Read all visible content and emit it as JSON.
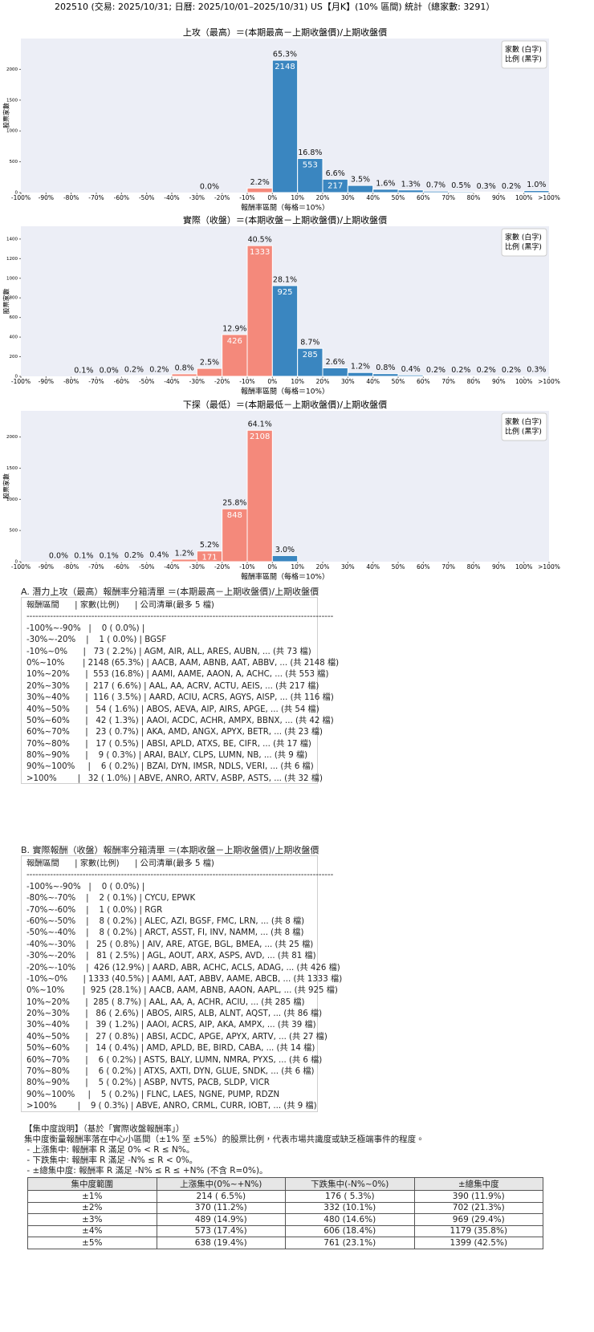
{
  "title": "202510 (交易: 2025/10/31; 日曆: 2025/10/01–2025/10/31) US【月K】(10% 區間) 統計（總家數: 3291）",
  "chart_data": [
    {
      "type": "histogram",
      "title": "上攻（最高）＝(本期最高－上期收盤價)/上期收盤價",
      "xlabel": "報酬率區間（每格＝10%）",
      "ylabel": "股票家數",
      "bins": [
        -100,
        -90,
        -80,
        -70,
        -60,
        -50,
        -40,
        -30,
        -20,
        -10,
        0,
        10,
        20,
        30,
        40,
        50,
        60,
        70,
        80,
        90,
        100,
        110
      ],
      "values": [
        0,
        0,
        0,
        0,
        0,
        0,
        0,
        1,
        0,
        73,
        2148,
        553,
        217,
        116,
        54,
        42,
        23,
        17,
        9,
        6,
        32
      ],
      "share_labels": [
        null,
        null,
        null,
        null,
        null,
        null,
        null,
        "0.0%",
        null,
        "2.2%",
        "65.3%",
        "16.8%",
        "6.6%",
        "3.5%",
        "1.6%",
        "1.3%",
        "0.7%",
        "0.5%",
        "0.3%",
        "0.2%",
        "1.0%"
      ],
      "xlim": [
        -100,
        110
      ],
      "xticks": [
        {
          "value": -100,
          "label": "-100%"
        },
        {
          "value": -90,
          "label": "-90%"
        },
        {
          "value": -80,
          "label": "-80%"
        },
        {
          "value": -70,
          "label": "-70%"
        },
        {
          "value": -60,
          "label": "-60%"
        },
        {
          "value": -50,
          "label": "-50%"
        },
        {
          "value": -40,
          "label": "-40%"
        },
        {
          "value": -30,
          "label": "-30%"
        },
        {
          "value": -20,
          "label": "-20%"
        },
        {
          "value": -10,
          "label": "-10%"
        },
        {
          "value": 0,
          "label": "0%"
        },
        {
          "value": 10,
          "label": "10%"
        },
        {
          "value": 20,
          "label": "20%"
        },
        {
          "value": 30,
          "label": "30%"
        },
        {
          "value": 40,
          "label": "40%"
        },
        {
          "value": 50,
          "label": "50%"
        },
        {
          "value": 60,
          "label": "60%"
        },
        {
          "value": 70,
          "label": "70%"
        },
        {
          "value": 80,
          "label": "80%"
        },
        {
          "value": 90,
          "label": "90%"
        },
        {
          "value": 100,
          "label": "100%"
        },
        {
          "value": 110,
          "label": ">100%"
        }
      ],
      "ylim": [
        0,
        2500
      ],
      "yticks": [
        0,
        500,
        1000,
        1500,
        2000
      ],
      "color_below_zero": "#f4897b",
      "color_above_zero": "#3a86c0",
      "legend": "upper right",
      "legend_text": [
        "家數 (白字)",
        "比例 (黑字)"
      ]
    },
    {
      "type": "histogram",
      "title": "實際（收盤）＝(本期收盤－上期收盤價)/上期收盤價",
      "xlabel": "報酬率區間（每格＝10%）",
      "ylabel": "股票家數",
      "bins": [
        -100,
        -90,
        -80,
        -70,
        -60,
        -50,
        -40,
        -30,
        -20,
        -10,
        0,
        10,
        20,
        30,
        40,
        50,
        60,
        70,
        80,
        90,
        100,
        110
      ],
      "values": [
        0,
        0,
        2,
        1,
        8,
        8,
        25,
        81,
        426,
        1333,
        925,
        285,
        86,
        39,
        27,
        14,
        6,
        6,
        5,
        5,
        9
      ],
      "share_labels": [
        null,
        null,
        "0.1%",
        "0.0%",
        "0.2%",
        "0.2%",
        "0.8%",
        "2.5%",
        "12.9%",
        "40.5%",
        "28.1%",
        "8.7%",
        "2.6%",
        "1.2%",
        "0.8%",
        "0.4%",
        "0.2%",
        "0.2%",
        "0.2%",
        "0.2%",
        "0.3%"
      ],
      "xlim": [
        -100,
        110
      ],
      "xticks": [
        {
          "value": -100,
          "label": "-100%"
        },
        {
          "value": -90,
          "label": "-90%"
        },
        {
          "value": -80,
          "label": "-80%"
        },
        {
          "value": -70,
          "label": "-70%"
        },
        {
          "value": -60,
          "label": "-60%"
        },
        {
          "value": -50,
          "label": "-50%"
        },
        {
          "value": -40,
          "label": "-40%"
        },
        {
          "value": -30,
          "label": "-30%"
        },
        {
          "value": -20,
          "label": "-20%"
        },
        {
          "value": -10,
          "label": "-10%"
        },
        {
          "value": 0,
          "label": "0%"
        },
        {
          "value": 10,
          "label": "10%"
        },
        {
          "value": 20,
          "label": "20%"
        },
        {
          "value": 30,
          "label": "30%"
        },
        {
          "value": 40,
          "label": "40%"
        },
        {
          "value": 50,
          "label": "50%"
        },
        {
          "value": 60,
          "label": "60%"
        },
        {
          "value": 70,
          "label": "70%"
        },
        {
          "value": 80,
          "label": "80%"
        },
        {
          "value": 90,
          "label": "90%"
        },
        {
          "value": 100,
          "label": "100%"
        },
        {
          "value": 110,
          "label": ">100%"
        }
      ],
      "ylim": [
        0,
        1530
      ],
      "yticks": [
        0,
        200,
        400,
        600,
        800,
        1000,
        1200,
        1400
      ],
      "color_below_zero": "#f4897b",
      "color_above_zero": "#3a86c0",
      "legend": "upper right",
      "legend_text": [
        "家數 (白字)",
        "比例 (黑字)"
      ]
    },
    {
      "type": "histogram",
      "title": "下探（最低）＝(本期最低－上期收盤價)/上期收盤價",
      "xlabel": "報酬率區間（每格＝10%）",
      "ylabel": "股票家數",
      "bins": [
        -100,
        -90,
        -80,
        -70,
        -60,
        -50,
        -40,
        -30,
        -20,
        -10,
        0,
        10,
        20,
        30,
        40,
        50,
        60,
        70,
        80,
        90,
        100,
        110
      ],
      "values": [
        0,
        1,
        3,
        2,
        7,
        13,
        40,
        171,
        848,
        2108,
        98,
        0,
        0,
        0,
        0,
        0,
        0,
        0,
        0,
        0,
        0
      ],
      "share_labels": [
        null,
        "0.0%",
        "0.1%",
        "0.1%",
        "0.2%",
        "0.4%",
        "1.2%",
        "5.2%",
        "25.8%",
        "64.1%",
        "3.0%",
        null,
        null,
        null,
        null,
        null,
        null,
        null,
        null,
        null,
        null
      ],
      "xlim": [
        -100,
        110
      ],
      "xticks": [
        {
          "value": -100,
          "label": "-100%"
        },
        {
          "value": -90,
          "label": "-90%"
        },
        {
          "value": -80,
          "label": "-80%"
        },
        {
          "value": -70,
          "label": "-70%"
        },
        {
          "value": -60,
          "label": "-60%"
        },
        {
          "value": -50,
          "label": "-50%"
        },
        {
          "value": -40,
          "label": "-40%"
        },
        {
          "value": -30,
          "label": "-30%"
        },
        {
          "value": -20,
          "label": "-20%"
        },
        {
          "value": -10,
          "label": "-10%"
        },
        {
          "value": 0,
          "label": "0%"
        },
        {
          "value": 10,
          "label": "10%"
        },
        {
          "value": 20,
          "label": "20%"
        },
        {
          "value": 30,
          "label": "30%"
        },
        {
          "value": 40,
          "label": "40%"
        },
        {
          "value": 50,
          "label": "50%"
        },
        {
          "value": 60,
          "label": "60%"
        },
        {
          "value": 70,
          "label": "70%"
        },
        {
          "value": 80,
          "label": "80%"
        },
        {
          "value": 90,
          "label": "90%"
        },
        {
          "value": 100,
          "label": "100%"
        },
        {
          "value": 110,
          "label": ">100%"
        }
      ],
      "ylim": [
        0,
        2420
      ],
      "yticks": [
        0,
        500,
        1000,
        1500,
        2000
      ],
      "color_below_zero": "#f4897b",
      "color_above_zero": "#3a86c0",
      "legend": "upper right",
      "legend_text": [
        "家數 (白字)",
        "比例 (黑字)"
      ]
    }
  ],
  "list_a": {
    "title": "A. 潛力上攻（最高）報酬率分箱清單 ＝(本期最高－上期收盤價)/上期收盤價",
    "header": "報酬區間      | 家數(比例)      | 公司清單(最多 5 檔)",
    "rule": "--------------------------------------------------------------------------------------------------------",
    "rows": [
      "-100%~-90%   |    0 ( 0.0%) |",
      "-30%~-20%    |    1 ( 0.0%) | BGSF",
      "-10%~0%      |   73 ( 2.2%) | AGM, AIR, ALL, ARES, AUBN, ... (共 73 檔)",
      "0%~10%       | 2148 (65.3%) | AACB, AAM, ABNB, AAT, ABBV, ... (共 2148 檔)",
      "10%~20%      |  553 (16.8%) | AAMI, AAME, AAON, A, ACHC, ... (共 553 檔)",
      "20%~30%      |  217 ( 6.6%) | AAL, AA, ACRV, ACTU, AEIS, ... (共 217 檔)",
      "30%~40%      |  116 ( 3.5%) | AARD, ACIU, ACRS, AGYS, AISP, ... (共 116 檔)",
      "40%~50%      |   54 ( 1.6%) | ABOS, AEVA, AIP, AIRS, APGE, ... (共 54 檔)",
      "50%~60%      |   42 ( 1.3%) | AAOI, ACDC, ACHR, AMPX, BBNX, ... (共 42 檔)",
      "60%~70%      |   23 ( 0.7%) | AKA, AMD, ANGX, APYX, BETR, ... (共 23 檔)",
      "70%~80%      |   17 ( 0.5%) | ABSI, APLD, ATXS, BE, CIFR, ... (共 17 檔)",
      "80%~90%      |    9 ( 0.3%) | ARAI, BALY, CLPS, LUMN, NB, ... (共 9 檔)",
      "90%~100%     |    6 ( 0.2%) | BZAI, DYN, IMSR, NDLS, VERI, ... (共 6 檔)",
      ">100%        |   32 ( 1.0%) | ABVE, ANRO, ARTV, ASBP, ASTS, ... (共 32 檔)"
    ]
  },
  "list_b": {
    "title": "B. 實際報酬（收盤）報酬率分箱清單 ＝(本期收盤－上期收盤價)/上期收盤價",
    "header": "報酬區間      | 家數(比例)      | 公司清單(最多 5 檔)",
    "rule": "--------------------------------------------------------------------------------------------------------",
    "rows": [
      "-100%~-90%   |    0 ( 0.0%) |",
      "-80%~-70%    |    2 ( 0.1%) | CYCU, EPWK",
      "-70%~-60%    |    1 ( 0.0%) | RGR",
      "-60%~-50%    |    8 ( 0.2%) | ALEC, AZI, BGSF, FMC, LRN, ... (共 8 檔)",
      "-50%~-40%    |    8 ( 0.2%) | ARCT, ASST, FI, INV, NAMM, ... (共 8 檔)",
      "-40%~-30%    |   25 ( 0.8%) | AIV, ARE, ATGE, BGL, BMEA, ... (共 25 檔)",
      "-30%~-20%    |   81 ( 2.5%) | AGL, AOUT, ARX, ASPS, AVD, ... (共 81 檔)",
      "-20%~-10%    |  426 (12.9%) | AARD, ABR, ACHC, ACLS, ADAG, ... (共 426 檔)",
      "-10%~0%      | 1333 (40.5%) | AAMI, AAT, ABBV, AAME, ABCB, ... (共 1333 檔)",
      "0%~10%       |  925 (28.1%) | AACB, AAM, ABNB, AAON, AAPL, ... (共 925 檔)",
      "10%~20%      |  285 ( 8.7%) | AAL, AA, A, ACHR, ACIU, ... (共 285 檔)",
      "20%~30%      |   86 ( 2.6%) | ABOS, AIRS, ALB, ALNT, AQST, ... (共 86 檔)",
      "30%~40%      |   39 ( 1.2%) | AAOI, ACRS, AIP, AKA, AMPX, ... (共 39 檔)",
      "40%~50%      |   27 ( 0.8%) | ABSI, ACDC, APGE, APYX, ARTV, ... (共 27 檔)",
      "50%~60%      |   14 ( 0.4%) | AMD, APLD, BE, BIRD, CABA, ... (共 14 檔)",
      "60%~70%      |    6 ( 0.2%) | ASTS, BALY, LUMN, NMRA, PYXS, ... (共 6 檔)",
      "70%~80%      |    6 ( 0.2%) | ATXS, AXTI, DYN, GLUE, SNDK, ... (共 6 檔)",
      "80%~90%      |    5 ( 0.2%) | ASBP, NVTS, PACB, SLDP, VICR",
      "90%~100%     |    5 ( 0.2%) | FLNC, LAES, NGNE, PUMP, RDZN",
      ">100%        |    9 ( 0.3%) | ABVE, ANRO, CRML, CURR, IOBT, ... (共 9 檔)"
    ]
  },
  "concentration": {
    "title": "【集中度說明】（基於「實際收盤報酬率」）",
    "description": [
      "集中度衡量報酬率落在中心小區間（±1% 至 ±5%）的股票比例，代表市場共識度或缺乏極端事件的程度。",
      " - 上漲集中: 報酬率 R 滿足 0% < R ≤ N%。",
      " - 下跌集中: 報酬率 R 滿足 -N% ≤ R < 0%。",
      " - ±總集中度: 報酬率 R 滿足 -N% ≤ R ≤ +N% (不含 R=0%)。"
    ],
    "table": {
      "header": [
        "集中度範圍",
        "上漲集中(0%~+N%)",
        "下跌集中(-N%~0%)",
        "±總集中度"
      ],
      "rows": [
        [
          "±1%",
          "214 ( 6.5%)",
          "176 ( 5.3%)",
          "390 (11.9%)"
        ],
        [
          "±2%",
          "370 (11.2%)",
          "332 (10.1%)",
          "702 (21.3%)"
        ],
        [
          "±3%",
          "489 (14.9%)",
          "480 (14.6%)",
          "969 (29.4%)"
        ],
        [
          "±4%",
          "573 (17.4%)",
          "606 (18.4%)",
          "1179 (35.8%)"
        ],
        [
          "±5%",
          "638 (19.4%)",
          "761 (23.1%)",
          "1399 (42.5%)"
        ]
      ]
    }
  }
}
